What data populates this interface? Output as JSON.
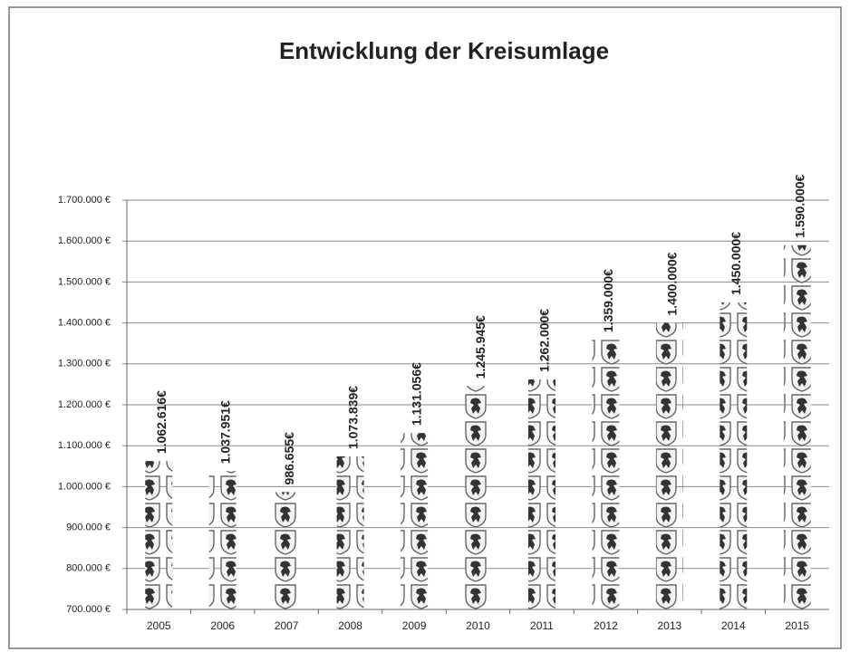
{
  "chart_data": {
    "type": "bar",
    "title": "Entwicklung der Kreisumlage",
    "categories": [
      "2005",
      "2006",
      "2007",
      "2008",
      "2009",
      "2010",
      "2011",
      "2012",
      "2013",
      "2014",
      "2015"
    ],
    "values": [
      1062616,
      1037951,
      986655,
      1073839,
      1131056,
      1245945,
      1262000,
      1359000,
      1400000,
      1450000,
      1590000
    ],
    "value_labels": [
      "1.062.616€",
      "1.037.951€",
      "986.655€",
      "1.073.839€",
      "1.131.056€",
      "1.245.945€",
      "1.262.000€",
      "1.359.000€",
      "1.400.000€",
      "1.450.000€",
      "1.590.000€"
    ],
    "ylim": [
      700000,
      1700000
    ],
    "yticks": [
      {
        "value": 700000,
        "label": "700.000 €"
      },
      {
        "value": 800000,
        "label": "800.000 €"
      },
      {
        "value": 900000,
        "label": "900.000 €"
      },
      {
        "value": 1000000,
        "label": "1.000.000 €"
      },
      {
        "value": 1100000,
        "label": "1.100.000 €"
      },
      {
        "value": 1200000,
        "label": "1.200.000 €"
      },
      {
        "value": 1300000,
        "label": "1.300.000 €"
      },
      {
        "value": 1400000,
        "label": "1.400.000 €"
      },
      {
        "value": 1500000,
        "label": "1.500.000 €"
      },
      {
        "value": 1600000,
        "label": "1.600.000 €"
      },
      {
        "value": 1700000,
        "label": "1.700.000 €"
      }
    ],
    "grid": true
  }
}
